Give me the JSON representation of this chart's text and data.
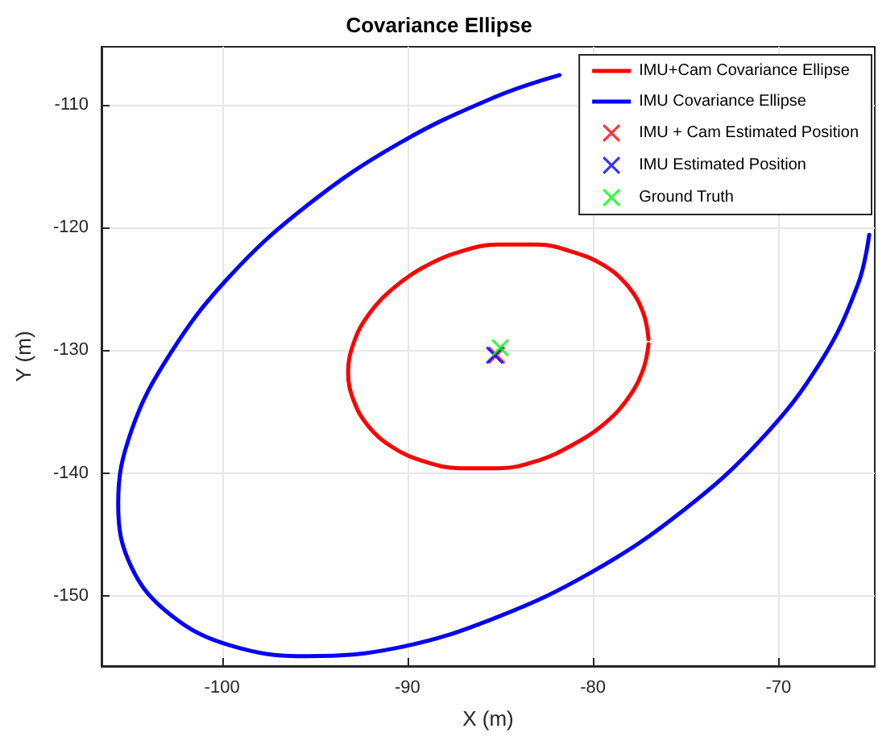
{
  "chart_data": {
    "type": "line",
    "title": "Covariance Ellipse",
    "xlabel": "X (m)",
    "ylabel": "Y (m)",
    "xlim": [
      -106.5,
      -64.8
    ],
    "ylim": [
      -155.7,
      -105.3
    ],
    "xticks": [
      -100,
      -90,
      -80,
      -70
    ],
    "yticks": [
      -150,
      -140,
      -130,
      -120,
      -110
    ],
    "grid": true,
    "legend": "top right",
    "line_style": "solid",
    "series": [
      {
        "name": "IMU+Cam Covariance Ellipse",
        "color": "#ff0000",
        "marker": "none",
        "x": [
          -77.0,
          -77.3,
          -78.1,
          -79.4,
          -81.1,
          -83.0,
          -85.1,
          -87.2,
          -89.2,
          -90.8,
          -92.1,
          -92.9,
          -93.2,
          -92.9,
          -92.1,
          -90.8,
          -89.2,
          -87.2,
          -85.1,
          -83.0,
          -81.1,
          -79.4,
          -78.1,
          -77.3,
          -77.0
        ],
        "values": [
          -129.1,
          -126.9,
          -124.8,
          -123.1,
          -122.0,
          -121.4,
          -121.4,
          -122.0,
          -123.3,
          -125.0,
          -127.1,
          -129.4,
          -131.8,
          -134.1,
          -136.2,
          -137.9,
          -139.0,
          -139.6,
          -139.6,
          -139.0,
          -137.7,
          -136.0,
          -133.9,
          -131.6,
          -129.5
        ]
      },
      {
        "name": "IMU Covariance Ellipse",
        "color": "#0000ff",
        "marker": "none",
        "x": [
          -81.8,
          -85.3,
          -90.5,
          -95.4,
          -99.6,
          -102.8,
          -104.9,
          -105.6,
          -104.9,
          -102.8,
          -99.6,
          -95.4,
          -90.5,
          -85.3,
          -80.0,
          -75.1,
          -70.9,
          -67.7,
          -65.7,
          -65.1
        ],
        "values": [
          -107.6,
          -109.4,
          -113.2,
          -118.2,
          -124.0,
          -130.3,
          -136.6,
          -142.5,
          -147.6,
          -151.5,
          -154.0,
          -154.9,
          -154.2,
          -151.8,
          -148.0,
          -143.0,
          -137.2,
          -130.9,
          -124.6,
          -120.6
        ]
      },
      {
        "name": "IMU + Cam Estimated Position",
        "type": "scatter",
        "color": "#ff0000",
        "marker": "cross",
        "x": [
          -85.2
        ],
        "values": [
          -130.4
        ]
      },
      {
        "name": "IMU Estimated Position",
        "type": "scatter",
        "color": "#0000ff",
        "marker": "cross",
        "x": [
          -85.3
        ],
        "values": [
          -130.4
        ]
      },
      {
        "name": "Ground Truth",
        "type": "scatter",
        "color": "#00ff00",
        "marker": "cross",
        "x": [
          -85.0
        ],
        "values": [
          -129.8
        ]
      }
    ]
  }
}
